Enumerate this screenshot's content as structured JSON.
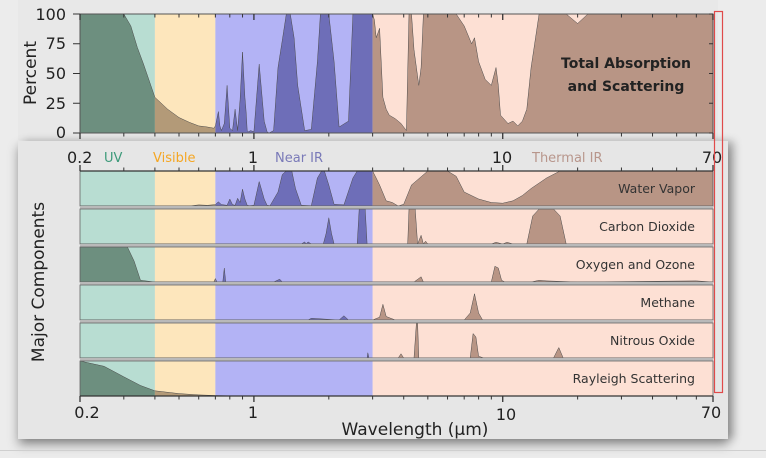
{
  "chart_data": [
    {
      "type": "area",
      "title": "Total Absorption and Scattering",
      "annotation": [
        "Total Absorption",
        "and Scattering"
      ],
      "xlabel": "",
      "ylabel": "Percent",
      "xscale": "log",
      "xlim": [
        0.2,
        70
      ],
      "ylim": [
        0,
        100
      ],
      "yticks": [
        "0",
        "25",
        "50",
        "75",
        "100"
      ],
      "x": [
        0.2,
        0.3,
        0.32,
        0.34,
        0.36,
        0.4,
        0.45,
        0.5,
        0.55,
        0.6,
        0.65,
        0.69,
        0.7,
        0.71,
        0.72,
        0.73,
        0.74,
        0.76,
        0.78,
        0.8,
        0.82,
        0.84,
        0.86,
        0.88,
        0.9,
        0.92,
        0.93,
        0.94,
        0.95,
        0.97,
        1.0,
        1.05,
        1.1,
        1.13,
        1.15,
        1.2,
        1.25,
        1.3,
        1.35,
        1.4,
        1.45,
        1.5,
        1.6,
        1.7,
        1.8,
        1.85,
        1.9,
        2.0,
        2.1,
        2.2,
        2.4,
        2.5,
        2.6,
        2.7,
        2.8,
        3.0,
        3.05,
        3.1,
        3.2,
        3.3,
        3.4,
        3.5,
        3.7,
        3.9,
        4.1,
        4.2,
        4.25,
        4.3,
        4.4,
        4.6,
        4.7,
        4.8,
        5.0,
        5.5,
        6.0,
        6.5,
        7.0,
        7.5,
        7.7,
        8.0,
        8.5,
        9.0,
        9.4,
        9.6,
        9.8,
        10.5,
        11.0,
        11.5,
        12.0,
        12.5,
        13.0,
        14.0,
        16,
        18,
        20,
        22,
        25,
        30,
        40,
        70
      ],
      "values": [
        100,
        100,
        90,
        72,
        58,
        30,
        20,
        13,
        9,
        6,
        5,
        4,
        6,
        12,
        18,
        6,
        2,
        8,
        40,
        4,
        2,
        20,
        2,
        28,
        68,
        30,
        18,
        2,
        1,
        2,
        1,
        58,
        10,
        1,
        0,
        2,
        55,
        78,
        100,
        100,
        80,
        40,
        2,
        3,
        60,
        100,
        100,
        100,
        60,
        5,
        10,
        100,
        100,
        100,
        100,
        100,
        95,
        80,
        88,
        30,
        20,
        15,
        12,
        8,
        2,
        100,
        100,
        100,
        70,
        40,
        55,
        100,
        100,
        100,
        100,
        100,
        90,
        75,
        80,
        60,
        45,
        40,
        55,
        40,
        15,
        8,
        10,
        6,
        10,
        20,
        55,
        100,
        100,
        100,
        92,
        100,
        100,
        100,
        100,
        100
      ],
      "colors": {
        "uv": "#b8ddd2",
        "visible": "#fde6bc",
        "near_ir": "#b3b3f5",
        "thermal_ir": "#fde0d4",
        "uv_fill": "#6d8f7f",
        "visible_fill": "#b39a78",
        "near_ir_fill": "#6e6eb8",
        "thermal_fill": "#b89585"
      }
    },
    {
      "type": "area",
      "title": "Major Components",
      "ylabel": "Major Components",
      "xlabel": "Wavelength (µm)",
      "xscale": "log",
      "xlim": [
        0.2,
        70
      ],
      "xticks": [
        "0.2",
        "1",
        "10",
        "70"
      ],
      "series": [
        {
          "name": "Water Vapor",
          "x": [
            0.2,
            0.55,
            0.6,
            0.65,
            0.7,
            0.72,
            0.74,
            0.78,
            0.8,
            0.82,
            0.84,
            0.86,
            0.88,
            0.9,
            0.92,
            0.94,
            0.96,
            1.0,
            1.05,
            1.1,
            1.13,
            1.16,
            1.25,
            1.3,
            1.35,
            1.42,
            1.47,
            1.55,
            1.7,
            1.8,
            1.87,
            1.92,
            2.0,
            2.1,
            2.3,
            2.5,
            2.6,
            2.7,
            2.8,
            3.0,
            3.1,
            3.2,
            3.4,
            3.6,
            3.8,
            4.0,
            4.3,
            5.0,
            5.5,
            6.0,
            6.5,
            7.0,
            8.0,
            9.0,
            10.0,
            11.0,
            12.0,
            13.0,
            15.0,
            17.0,
            20.0,
            70
          ],
          "values": [
            0,
            0,
            3,
            2,
            4,
            12,
            4,
            2,
            20,
            4,
            2,
            22,
            10,
            48,
            20,
            2,
            1,
            2,
            70,
            20,
            2,
            1,
            40,
            90,
            100,
            100,
            50,
            2,
            1,
            80,
            100,
            100,
            60,
            5,
            3,
            80,
            100,
            100,
            100,
            100,
            80,
            60,
            15,
            10,
            0,
            5,
            60,
            100,
            100,
            100,
            85,
            40,
            20,
            10,
            8,
            15,
            30,
            50,
            80,
            100,
            100,
            100
          ]
        },
        {
          "name": "Carbon Dioxide",
          "x": [
            0.2,
            1.55,
            1.6,
            1.62,
            1.65,
            1.7,
            1.9,
            1.95,
            2.0,
            2.05,
            2.1,
            2.6,
            2.65,
            2.7,
            2.8,
            2.85,
            3.0,
            4.15,
            4.2,
            4.45,
            4.55,
            4.7,
            4.8,
            4.9,
            5.0,
            5.2,
            9.0,
            9.4,
            10.0,
            10.4,
            11.0,
            12.5,
            13.2,
            14.0,
            15.0,
            16.0,
            17.0,
            18.0,
            70
          ],
          "values": [
            0,
            0,
            6,
            0,
            6,
            0,
            0,
            30,
            75,
            30,
            0,
            0,
            100,
            100,
            100,
            0,
            0,
            0,
            100,
            100,
            0,
            25,
            0,
            8,
            0,
            0,
            0,
            5,
            0,
            5,
            0,
            0,
            80,
            100,
            100,
            100,
            80,
            0,
            0
          ]
        },
        {
          "name": "Oxygen and Ozone",
          "x": [
            0.2,
            0.3,
            0.31,
            0.33,
            0.35,
            0.4,
            0.69,
            0.7,
            0.71,
            0.75,
            0.76,
            0.77,
            1.2,
            1.27,
            1.3,
            3.0,
            4.4,
            4.7,
            4.8,
            5.0,
            9.0,
            9.3,
            9.6,
            9.9,
            10.2,
            13,
            14,
            15,
            20,
            60,
            70
          ],
          "values": [
            100,
            100,
            100,
            60,
            5,
            0,
            0,
            10,
            0,
            0,
            40,
            0,
            0,
            8,
            0,
            0,
            0,
            15,
            0,
            0,
            0,
            45,
            40,
            5,
            0,
            0,
            5,
            3,
            0,
            3,
            0
          ]
        },
        {
          "name": "Methane",
          "x": [
            0.2,
            1.65,
            1.7,
            2.2,
            2.3,
            2.4,
            3.0,
            3.2,
            3.3,
            3.4,
            3.7,
            4.0,
            7.0,
            7.4,
            7.7,
            8.0,
            8.3,
            70
          ],
          "values": [
            0,
            0,
            5,
            0,
            12,
            0,
            0,
            8,
            45,
            10,
            0,
            0,
            0,
            20,
            75,
            20,
            0,
            0
          ]
        },
        {
          "name": "Nitrous Oxide",
          "x": [
            0.2,
            2.85,
            2.87,
            2.9,
            3.0,
            3.8,
            3.9,
            4.0,
            4.2,
            4.4,
            4.5,
            4.55,
            4.6,
            7.4,
            7.6,
            7.8,
            8.0,
            8.4,
            16.0,
            16.8,
            17.5,
            70
          ],
          "values": [
            0,
            0,
            15,
            0,
            0,
            0,
            12,
            0,
            0,
            0,
            100,
            100,
            0,
            0,
            70,
            60,
            5,
            0,
            0,
            30,
            0,
            0
          ]
        },
        {
          "name": "Rayleigh Scattering",
          "x": [
            0.2,
            0.25,
            0.3,
            0.35,
            0.4,
            0.5,
            0.6,
            0.7,
            0.8,
            1.0,
            70
          ],
          "values": [
            100,
            85,
            55,
            30,
            15,
            7,
            3,
            1.5,
            0.5,
            0,
            0
          ]
        }
      ],
      "bands": [
        {
          "name": "UV",
          "from": 0.2,
          "to": 0.4,
          "label_color": "#3d9a7a"
        },
        {
          "name": "Visible",
          "from": 0.4,
          "to": 0.7,
          "label_color": "#f5a623"
        },
        {
          "name": "Near IR",
          "from": 0.7,
          "to": 3.0,
          "label_color": "#7a7ab8"
        },
        {
          "name": "Thermal IR",
          "from": 3.0,
          "to": 70,
          "label_color": "#b8968c"
        }
      ],
      "grid": false,
      "legend": "none"
    }
  ],
  "labels": {
    "top_ylabel": "Percent",
    "bottom_ylabel": "Major Components",
    "xlabel": "Wavelength (µm)",
    "annotation_line1": "Total Absorption",
    "annotation_line2": "and Scattering",
    "mid_ticks": {
      "t02": "0.2",
      "t1": "1",
      "t10": "10",
      "t70": "70"
    },
    "bottom_ticks": {
      "t02": "0.2",
      "t1": "1",
      "t10": "10",
      "t70": "70"
    },
    "bands": {
      "uv": "UV",
      "visible": "Visible",
      "near_ir": "Near IR",
      "thermal_ir": "Thermal IR"
    },
    "yticks": {
      "y0": "0",
      "y25": "25",
      "y50": "50",
      "y75": "75",
      "y100": "100"
    },
    "rows": {
      "r0": "Water Vapor",
      "r1": "Carbon Dioxide",
      "r2": "Oxygen and Ozone",
      "r3": "Methane",
      "r4": "Nitrous Oxide",
      "r5": "Rayleigh Scattering"
    }
  }
}
